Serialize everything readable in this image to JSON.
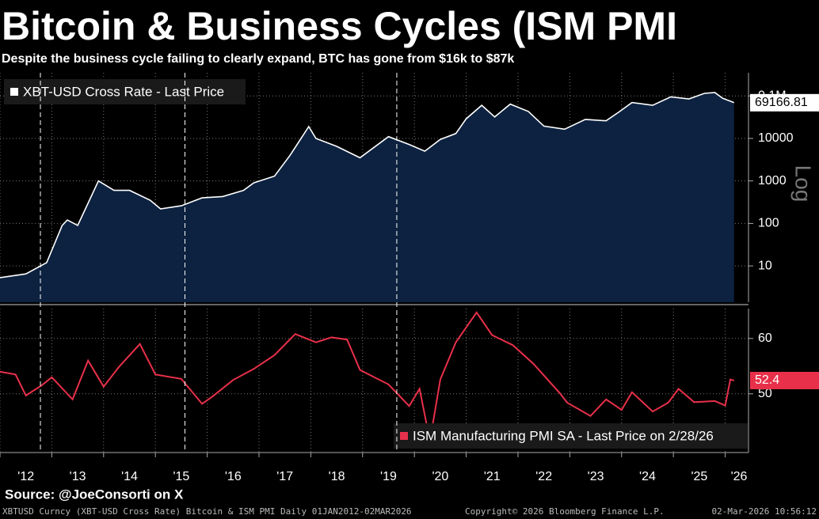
{
  "title": "Bitcoin & Business Cycles (ISM PMI",
  "subtitle": "Despite the business cycle failing to clearly expand, BTC has gone from $16k to $87k",
  "source": "Source: @JoeConsorti on X",
  "footer": {
    "left": "XBTUSD Curncy (XBT-USD Cross Rate) Bitcoin & ISM PMI Daily 01JAN2012-02MAR2026",
    "center": "Copyright© 2026 Bloomberg Finance L.P.",
    "right": "02-Mar-2026 10:56:12"
  },
  "cycle_markers": [
    2012.78,
    2015.57,
    2019.66
  ],
  "chart_data": [
    {
      "type": "area",
      "log_scale": true,
      "axis_note": "Log",
      "grid": true,
      "legend": "upper left",
      "xlim": [
        2012,
        2026.45
      ],
      "ylim": [
        1.4,
        350000
      ],
      "yticks": [
        10,
        100,
        1000,
        10000,
        {
          "value": 100000,
          "label": "0.1M"
        }
      ],
      "series": [
        {
          "name": "XBT-USD Cross Rate - Last Price",
          "color": "#ffffff",
          "fill": "#0d2240",
          "x": [
            2012.0,
            2012.5,
            2012.9,
            2013.2,
            2013.3,
            2013.5,
            2013.9,
            2014.2,
            2014.5,
            2014.9,
            2015.1,
            2015.5,
            2015.9,
            2016.3,
            2016.7,
            2016.9,
            2017.3,
            2017.6,
            2017.96,
            2018.1,
            2018.5,
            2018.95,
            2019.5,
            2019.9,
            2020.2,
            2020.5,
            2020.8,
            2021.0,
            2021.3,
            2021.55,
            2021.85,
            2022.2,
            2022.5,
            2022.9,
            2023.3,
            2023.7,
            2023.95,
            2024.2,
            2024.6,
            2024.95,
            2025.3,
            2025.6,
            2025.8,
            2025.95,
            2026.1,
            2026.17
          ],
          "values": [
            5.3,
            6.5,
            12,
            90,
            120,
            90,
            1000,
            600,
            600,
            350,
            220,
            260,
            400,
            430,
            600,
            900,
            1300,
            4000,
            19000,
            10000,
            6500,
            3500,
            11000,
            7200,
            5000,
            9500,
            13000,
            29000,
            60000,
            32000,
            64000,
            43000,
            19500,
            16500,
            28000,
            26000,
            42000,
            70000,
            60000,
            95000,
            85000,
            115000,
            120000,
            88000,
            75000,
            69166.81
          ]
        }
      ]
    },
    {
      "type": "line",
      "grid": true,
      "legend": "lower right",
      "xlim": [
        2012,
        2026.45
      ],
      "ylim": [
        39.4,
        65.4
      ],
      "yticks": [
        50,
        60
      ],
      "xticks": [
        {
          "value": 2012,
          "label": "'12"
        },
        {
          "value": 2013,
          "label": "'13"
        },
        {
          "value": 2014,
          "label": "'14"
        },
        {
          "value": 2015,
          "label": "'15"
        },
        {
          "value": 2016,
          "label": "'16"
        },
        {
          "value": 2017,
          "label": "'17"
        },
        {
          "value": 2018,
          "label": "'18"
        },
        {
          "value": 2019,
          "label": "'19"
        },
        {
          "value": 2020,
          "label": "'20"
        },
        {
          "value": 2021,
          "label": "'21"
        },
        {
          "value": 2022,
          "label": "'22"
        },
        {
          "value": 2023,
          "label": "'23"
        },
        {
          "value": 2024,
          "label": "'24"
        },
        {
          "value": 2025,
          "label": "'25"
        },
        {
          "value": 2026,
          "label": "'26"
        }
      ],
      "series": [
        {
          "name": "ISM Manufacturing PMI SA - Last Price on 2/28/26",
          "color": "#e8304a",
          "x": [
            2012.0,
            2012.3,
            2012.5,
            2012.8,
            2013.0,
            2013.4,
            2013.7,
            2014.0,
            2014.3,
            2014.7,
            2015.0,
            2015.5,
            2015.9,
            2016.1,
            2016.5,
            2016.9,
            2017.3,
            2017.7,
            2018.1,
            2018.4,
            2018.7,
            2018.95,
            2019.5,
            2019.9,
            2020.1,
            2020.3,
            2020.5,
            2020.8,
            2021.2,
            2021.5,
            2021.9,
            2022.3,
            2022.8,
            2022.95,
            2023.4,
            2023.7,
            2024.0,
            2024.2,
            2024.6,
            2024.9,
            2025.1,
            2025.4,
            2025.8,
            2026.0,
            2026.1,
            2026.17
          ],
          "values": [
            54,
            53.5,
            49.7,
            51.5,
            53,
            49,
            56,
            51.3,
            54.9,
            59,
            53.5,
            52.7,
            48.2,
            49.5,
            52.5,
            54.5,
            57,
            60.8,
            59.3,
            60.2,
            59.8,
            54.3,
            51.7,
            47.8,
            50.9,
            41.5,
            52.6,
            59.3,
            64.7,
            60.6,
            58.8,
            55.4,
            50.2,
            48.4,
            46.0,
            49,
            47.1,
            50.3,
            46.8,
            48.4,
            50.9,
            48.5,
            48.7,
            47.9,
            52.6,
            52.4
          ]
        }
      ]
    }
  ]
}
